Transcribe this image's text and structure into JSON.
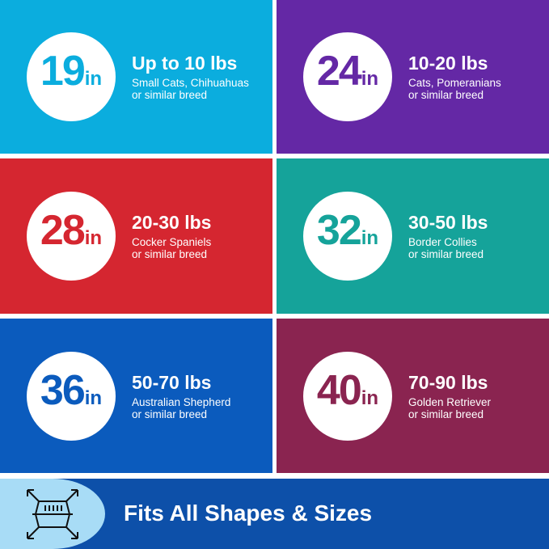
{
  "tiles": [
    {
      "size": "19",
      "unit": "in",
      "weight": "Up to 10 lbs",
      "breeds": "Small Cats, Chihuahuas",
      "suffix": "or similar breed",
      "color": "#0badde"
    },
    {
      "size": "24",
      "unit": "in",
      "weight": "10-20 lbs",
      "breeds": "Cats, Pomeranians",
      "suffix": "or similar breed",
      "color": "#6428a5"
    },
    {
      "size": "28",
      "unit": "in",
      "weight": "20-30 lbs",
      "breeds": "Cocker Spaniels",
      "suffix": "or similar breed",
      "color": "#d52630"
    },
    {
      "size": "32",
      "unit": "in",
      "weight": "30-50 lbs",
      "breeds": "Border Collies",
      "suffix": "or similar breed",
      "color": "#15a39a"
    },
    {
      "size": "36",
      "unit": "in",
      "weight": "50-70 lbs",
      "breeds": "Australian Shepherd",
      "suffix": "or similar breed",
      "color": "#0b5bbd"
    },
    {
      "size": "40",
      "unit": "in",
      "weight": "70-90 lbs",
      "breeds": "Golden Retriever",
      "suffix": "or similar breed",
      "color": "#8a2450"
    }
  ],
  "banner": {
    "text": "Fits All Shapes & Sizes",
    "icon": "expand-crate-icon",
    "color": "#0d50a9"
  }
}
